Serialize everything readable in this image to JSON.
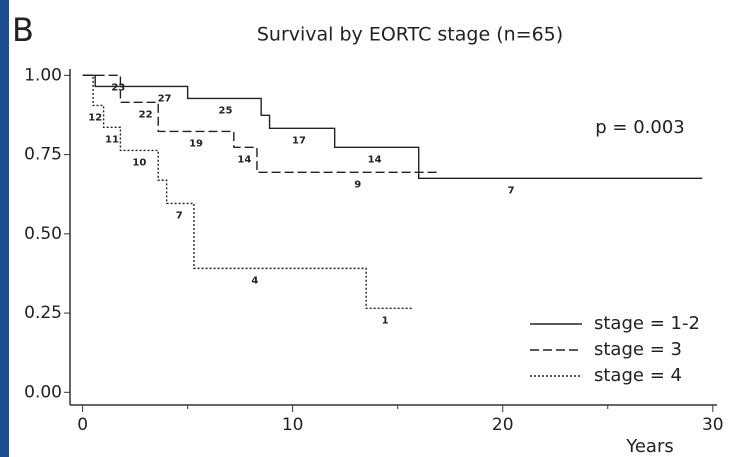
{
  "panel_label": "B",
  "chart_data": {
    "type": "step",
    "title": "Survival by EORTC stage (n=65)",
    "annotation": "p = 0.003",
    "x_label": "Years",
    "xlim": [
      -0.6,
      30.2
    ],
    "xticks": [
      0,
      10,
      20,
      30
    ],
    "xminor_ticks": [
      5,
      15,
      25
    ],
    "ylim": [
      -0.04,
      1.02
    ],
    "yticks": [
      {
        "value": 0,
        "label": "0.00"
      },
      {
        "value": 0.25,
        "label": "0.25"
      },
      {
        "value": 0.5,
        "label": "0.50"
      },
      {
        "value": 0.75,
        "label": "0.75"
      },
      {
        "value": 1,
        "label": "1.00"
      }
    ],
    "legend": "lower right",
    "series": [
      {
        "name": "stage = 1-2",
        "color": "#222222",
        "dash": "solid",
        "x": [
          0,
          0.6,
          5,
          8.5,
          8.9,
          12,
          16,
          29.5
        ],
        "values": [
          1,
          0.965,
          0.927,
          0.874,
          0.833,
          0.773,
          0.675,
          0.675
        ],
        "at_risk": [
          {
            "time": 3.9,
            "n": 27
          },
          {
            "time": 6.8,
            "n": 25
          },
          {
            "time": 10.3,
            "n": 17
          },
          {
            "time": 13.9,
            "n": 14
          },
          {
            "time": 20.4,
            "n": 7
          }
        ]
      },
      {
        "name": "stage = 3",
        "color": "#222222",
        "dash": "dashed",
        "x": [
          0,
          1.8,
          3.6,
          7.2,
          8.3,
          17
        ],
        "values": [
          1,
          0.915,
          0.823,
          0.773,
          0.694,
          0.694
        ],
        "at_risk": [
          {
            "time": 1.7,
            "n": 23
          },
          {
            "time": 3.0,
            "n": 22
          },
          {
            "time": 5.4,
            "n": 19
          },
          {
            "time": 7.7,
            "n": 14
          },
          {
            "time": 13.1,
            "n": 9
          }
        ]
      },
      {
        "name": "stage = 4",
        "color": "#222222",
        "dash": "dotted",
        "x": [
          0,
          0.5,
          1.0,
          1.8,
          3.6,
          4.0,
          5.3,
          13.5,
          15.7
        ],
        "values": [
          1,
          0.905,
          0.836,
          0.763,
          0.669,
          0.596,
          0.391,
          0.265,
          0.265
        ],
        "at_risk": [
          {
            "time": 0.6,
            "n": 12
          },
          {
            "time": 1.4,
            "n": 11
          },
          {
            "time": 2.7,
            "n": 10
          },
          {
            "time": 4.6,
            "n": 7
          },
          {
            "time": 8.2,
            "n": 4
          },
          {
            "time": 14.4,
            "n": 1
          }
        ]
      }
    ]
  }
}
